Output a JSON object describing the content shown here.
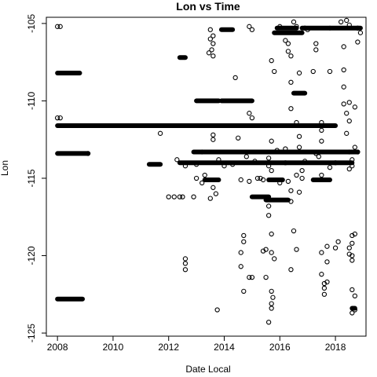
{
  "chart_data": {
    "type": "scatter",
    "title": "Lon vs Time",
    "xlabel": "Date Local",
    "ylabel": "Lon",
    "xlim": [
      2007.6,
      2019.1
    ],
    "ylim": [
      -125.2,
      -104.6
    ],
    "x_ticks": [
      2008,
      2010,
      2012,
      2014,
      2016,
      2018
    ],
    "x_tick_labels": [
      "2008",
      "2010",
      "2012",
      "2014",
      "2016",
      "2018"
    ],
    "y_ticks": [
      -105,
      -110,
      -115,
      -120,
      -125
    ],
    "y_tick_labels": [
      "-105",
      "-110",
      "-115",
      "-120",
      "-125"
    ],
    "grid": false,
    "marker": "open-circle",
    "bands": [
      {
        "x": [
          2008.0,
          2018.0
        ],
        "y": -111.6
      },
      {
        "x": [
          2008.0,
          2009.1
        ],
        "y": -113.4
      },
      {
        "x": [
          2008.0,
          2008.8
        ],
        "y": -108.2
      },
      {
        "x": [
          2008.0,
          2008.9
        ],
        "y": -122.8
      },
      {
        "x": [
          2011.3,
          2011.7
        ],
        "y": -114.1
      },
      {
        "x": [
          2012.9,
          2018.8
        ],
        "y": -113.3
      },
      {
        "x": [
          2013.0,
          2013.8
        ],
        "y": -110.0
      },
      {
        "x": [
          2013.9,
          2015.0
        ],
        "y": -110.0
      },
      {
        "x": [
          2013.9,
          2014.3
        ],
        "y": -105.4
      },
      {
        "x": [
          2012.4,
          2018.6
        ],
        "y": -114.0
      },
      {
        "x": [
          2015.9,
          2016.6
        ],
        "y": -105.3
      },
      {
        "x": [
          2017.8,
          2018.9
        ],
        "y": -105.3
      },
      {
        "x": [
          2016.8,
          2017.8
        ],
        "y": -105.3
      },
      {
        "x": [
          2015.8,
          2016.8
        ],
        "y": -105.6
      },
      {
        "x": [
          2016.5,
          2016.9
        ],
        "y": -109.5
      },
      {
        "x": [
          2015.5,
          2016.3
        ],
        "y": -116.4
      },
      {
        "x": [
          2015.0,
          2015.6
        ],
        "y": -116.2
      },
      {
        "x": [
          2013.3,
          2013.8
        ],
        "y": -115.1
      },
      {
        "x": [
          2015.6,
          2016.1
        ],
        "y": -115.1
      },
      {
        "x": [
          2017.2,
          2017.8
        ],
        "y": -115.1
      },
      {
        "x": [
          2018.6,
          2018.7
        ],
        "y": -123.4
      },
      {
        "x": [
          2012.4,
          2012.6
        ],
        "y": -107.2
      }
    ],
    "points": [
      [
        2008.0,
        -105.2
      ],
      [
        2008.1,
        -105.2
      ],
      [
        2008.0,
        -111.1
      ],
      [
        2008.1,
        -111.1
      ],
      [
        2009.1,
        -113.4
      ],
      [
        2011.7,
        -112.1
      ],
      [
        2012.0,
        -116.2
      ],
      [
        2012.2,
        -116.2
      ],
      [
        2012.4,
        -116.2
      ],
      [
        2012.5,
        -116.2
      ],
      [
        2012.9,
        -116.2
      ],
      [
        2012.6,
        -120.2
      ],
      [
        2012.6,
        -120.5
      ],
      [
        2012.6,
        -120.9
      ],
      [
        2013.0,
        -115.0
      ],
      [
        2013.2,
        -115.3
      ],
      [
        2013.3,
        -114.8
      ],
      [
        2013.5,
        -116.3
      ],
      [
        2013.7,
        -116.0
      ],
      [
        2013.75,
        -123.5
      ],
      [
        2013.8,
        -113.8
      ],
      [
        2013.6,
        -112.5
      ],
      [
        2013.6,
        -112.2
      ],
      [
        2013.5,
        -106.0
      ],
      [
        2013.6,
        -106.3
      ],
      [
        2013.55,
        -106.7
      ],
      [
        2013.6,
        -107.1
      ],
      [
        2013.45,
        -106.9
      ],
      [
        2013.5,
        -105.4
      ],
      [
        2013.6,
        -105.8
      ],
      [
        2013.6,
        -115.6
      ],
      [
        2014.3,
        -114.1
      ],
      [
        2014.4,
        -108.5
      ],
      [
        2014.5,
        -112.4
      ],
      [
        2014.6,
        -115.1
      ],
      [
        2014.6,
        -119.8
      ],
      [
        2014.6,
        -120.7
      ],
      [
        2014.7,
        -118.7
      ],
      [
        2014.7,
        -119.1
      ],
      [
        2014.7,
        -122.3
      ],
      [
        2014.9,
        -105.2
      ],
      [
        2015.0,
        -105.4
      ],
      [
        2014.9,
        -110.8
      ],
      [
        2015.0,
        -111.1
      ],
      [
        2014.9,
        -121.4
      ],
      [
        2015.0,
        -121.4
      ],
      [
        2015.2,
        -115.0
      ],
      [
        2015.3,
        -115.0
      ],
      [
        2015.4,
        -119.7
      ],
      [
        2015.5,
        -119.6
      ],
      [
        2015.5,
        -121.4
      ],
      [
        2015.6,
        -113.7
      ],
      [
        2015.6,
        -114.2
      ],
      [
        2015.7,
        -114.5
      ],
      [
        2015.6,
        -116.8
      ],
      [
        2015.6,
        -117.4
      ],
      [
        2015.7,
        -118.6
      ],
      [
        2015.7,
        -119.8
      ],
      [
        2015.8,
        -120.2
      ],
      [
        2015.7,
        -122.3
      ],
      [
        2015.75,
        -122.7
      ],
      [
        2015.7,
        -123.1
      ],
      [
        2015.7,
        -123.4
      ],
      [
        2015.6,
        -124.3
      ],
      [
        2015.7,
        -107.4
      ],
      [
        2015.8,
        -108.1
      ],
      [
        2015.7,
        -112.6
      ],
      [
        2016.0,
        -105.2
      ],
      [
        2016.2,
        -106.1
      ],
      [
        2016.3,
        -106.3
      ],
      [
        2016.3,
        -106.8
      ],
      [
        2016.4,
        -107.1
      ],
      [
        2016.4,
        -108.8
      ],
      [
        2016.4,
        -110.5
      ],
      [
        2016.2,
        -113.1
      ],
      [
        2016.3,
        -115.2
      ],
      [
        2016.4,
        -115.8
      ],
      [
        2016.4,
        -116.5
      ],
      [
        2016.6,
        -114.8
      ],
      [
        2016.6,
        -119.6
      ],
      [
        2016.5,
        -118.4
      ],
      [
        2016.4,
        -120.9
      ],
      [
        2016.5,
        -104.9
      ],
      [
        2016.6,
        -105.2
      ],
      [
        2016.7,
        -108.2
      ],
      [
        2016.7,
        -113.0
      ],
      [
        2016.7,
        -112.3
      ],
      [
        2016.6,
        -111.4
      ],
      [
        2016.8,
        -114.5
      ],
      [
        2016.7,
        -115.9
      ],
      [
        2016.9,
        -105.3
      ],
      [
        2017.0,
        -105.4
      ],
      [
        2017.2,
        -108.1
      ],
      [
        2017.3,
        -106.3
      ],
      [
        2017.3,
        -106.7
      ],
      [
        2017.4,
        -113.6
      ],
      [
        2017.5,
        -111.4
      ],
      [
        2017.5,
        -111.9
      ],
      [
        2017.5,
        -112.6
      ],
      [
        2017.5,
        -114.8
      ],
      [
        2017.5,
        -119.8
      ],
      [
        2017.5,
        -121.2
      ],
      [
        2017.6,
        -121.8
      ],
      [
        2017.6,
        -122.1
      ],
      [
        2017.6,
        -122.5
      ],
      [
        2017.7,
        -119.4
      ],
      [
        2017.7,
        -121.7
      ],
      [
        2017.7,
        -120.4
      ],
      [
        2017.8,
        -114.3
      ],
      [
        2017.8,
        -108.1
      ],
      [
        2018.0,
        -114.0
      ],
      [
        2018.0,
        -119.5
      ],
      [
        2018.1,
        -119.1
      ],
      [
        2018.2,
        -104.9
      ],
      [
        2018.3,
        -106.5
      ],
      [
        2018.3,
        -108.0
      ],
      [
        2018.3,
        -109.1
      ],
      [
        2018.3,
        -110.2
      ],
      [
        2018.4,
        -110.8
      ],
      [
        2018.4,
        -112.1
      ],
      [
        2018.5,
        -111.3
      ],
      [
        2018.5,
        -110.1
      ],
      [
        2018.4,
        -104.8
      ],
      [
        2018.5,
        -105.1
      ],
      [
        2018.5,
        -113.3
      ],
      [
        2018.5,
        -114.4
      ],
      [
        2018.5,
        -119.5
      ],
      [
        2018.5,
        -119.9
      ],
      [
        2018.6,
        -119.2
      ],
      [
        2018.6,
        -118.7
      ],
      [
        2018.6,
        -114.2
      ],
      [
        2018.6,
        -113.8
      ],
      [
        2018.7,
        -110.4
      ],
      [
        2018.7,
        -113.0
      ],
      [
        2018.7,
        -118.6
      ],
      [
        2018.6,
        -122.2
      ],
      [
        2018.7,
        -122.6
      ],
      [
        2018.6,
        -123.7
      ],
      [
        2018.7,
        -123.5
      ],
      [
        2018.8,
        -105.3
      ],
      [
        2018.9,
        -105.6
      ],
      [
        2018.8,
        -106.2
      ],
      [
        2018.8,
        -113.3
      ],
      [
        2018.6,
        -120.3
      ],
      [
        2018.6,
        -120.0
      ],
      [
        2012.3,
        -113.8
      ],
      [
        2012.6,
        -114.2
      ],
      [
        2013.2,
        -113.3
      ],
      [
        2014.0,
        -114.2
      ],
      [
        2014.8,
        -113.6
      ],
      [
        2015.1,
        -113.9
      ],
      [
        2015.9,
        -113.2
      ],
      [
        2016.2,
        -114.0
      ],
      [
        2016.9,
        -113.9
      ],
      [
        2017.3,
        -113.4
      ],
      [
        2013.0,
        -114.1
      ],
      [
        2014.9,
        -115.2
      ],
      [
        2015.4,
        -115.1
      ],
      [
        2016.0,
        -115.3
      ],
      [
        2016.8,
        -115.0
      ]
    ]
  }
}
